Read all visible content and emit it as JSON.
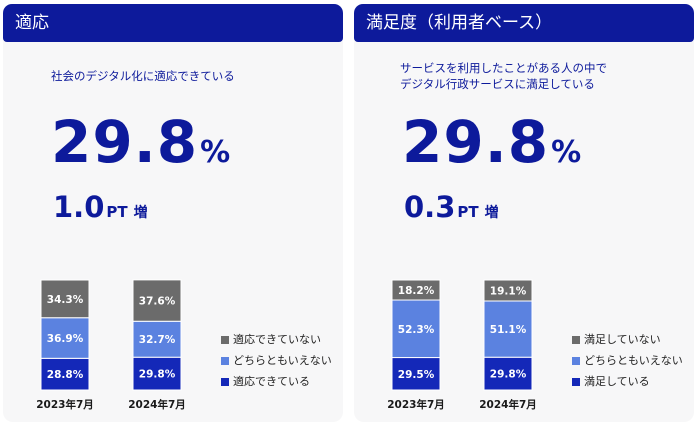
{
  "colors": {
    "header_bg": "#0d1a9b",
    "accent_text": "#0d1a9b",
    "seg_top": "#6b6b6b",
    "seg_mid": "#5b82e0",
    "seg_bot": "#1428b8"
  },
  "panels": [
    {
      "title": "適応",
      "description_lines": [
        "社会のデジタル化に適応できている"
      ],
      "big_value": "29.8",
      "big_unit": "%",
      "delta_value": "1.0",
      "delta_unit": "PT",
      "delta_word": "増",
      "legend": [
        "適応できていない",
        "どちらともいえない",
        "適応できている"
      ]
    },
    {
      "title": "満足度（利用者ベース）",
      "description_lines": [
        "サービスを利用したことがある人の中で",
        "デジタル行政サービスに満足している"
      ],
      "big_value": "29.8",
      "big_unit": "%",
      "delta_value": "0.3",
      "delta_unit": "PT",
      "delta_word": "増",
      "legend": [
        "満足していない",
        "どちらともいえない",
        "満足している"
      ]
    }
  ],
  "chart_data": [
    {
      "type": "bar",
      "stacked": true,
      "categories": [
        "2023年7月",
        "2024年7月"
      ],
      "series": [
        {
          "name": "適応できている",
          "values": [
            28.8,
            29.8
          ]
        },
        {
          "name": "どちらともいえない",
          "values": [
            36.9,
            32.7
          ]
        },
        {
          "name": "適応できていない",
          "values": [
            34.3,
            37.6
          ]
        }
      ],
      "value_labels": [
        [
          "28.8%",
          "36.9%",
          "34.3%"
        ],
        [
          "29.8%",
          "32.7%",
          "37.6%"
        ]
      ],
      "ylim": [
        0,
        100
      ]
    },
    {
      "type": "bar",
      "stacked": true,
      "categories": [
        "2023年7月",
        "2024年7月"
      ],
      "series": [
        {
          "name": "満足している",
          "values": [
            29.5,
            29.8
          ]
        },
        {
          "name": "どちらともいえない",
          "values": [
            52.3,
            51.1
          ]
        },
        {
          "name": "満足していない",
          "values": [
            18.2,
            19.1
          ]
        }
      ],
      "value_labels": [
        [
          "29.5%",
          "52.3%",
          "18.2%"
        ],
        [
          "29.8%",
          "51.1%",
          "19.1%"
        ]
      ],
      "ylim": [
        0,
        100
      ]
    }
  ]
}
